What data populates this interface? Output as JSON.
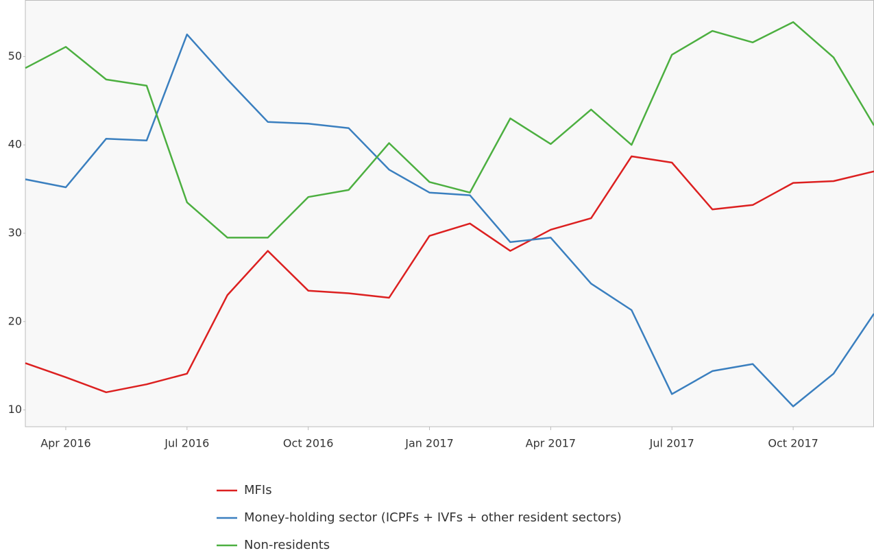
{
  "chart_data": {
    "type": "line",
    "x": [
      "2016-03",
      "2016-04",
      "2016-05",
      "2016-06",
      "2016-07",
      "2016-08",
      "2016-09",
      "2016-10",
      "2016-11",
      "2016-12",
      "2017-01",
      "2017-02",
      "2017-03",
      "2017-04",
      "2017-05",
      "2017-06",
      "2017-07",
      "2017-08",
      "2017-09",
      "2017-10",
      "2017-11",
      "2017-12"
    ],
    "xlim": [
      "2016-03",
      "2017-12"
    ],
    "xticks": [
      {
        "value": "2016-04",
        "label": "Apr 2016"
      },
      {
        "value": "2016-07",
        "label": "Jul 2016"
      },
      {
        "value": "2016-10",
        "label": "Oct 2016"
      },
      {
        "value": "2017-01",
        "label": "Jan 2017"
      },
      {
        "value": "2017-04",
        "label": "Apr 2017"
      },
      {
        "value": "2017-07",
        "label": "Jul 2017"
      },
      {
        "value": "2017-10",
        "label": "Oct 2017"
      }
    ],
    "ylim": [
      8.1,
      56.4
    ],
    "yticks": [
      10,
      20,
      30,
      40,
      50
    ],
    "grid": false,
    "legend": "bottom",
    "series": [
      {
        "name": "MFIs",
        "color": "#dc2020",
        "values": [
          15.3,
          13.7,
          12.0,
          12.9,
          14.1,
          23.0,
          28.0,
          23.5,
          23.2,
          22.7,
          29.7,
          31.1,
          28.0,
          30.4,
          31.7,
          38.7,
          38.0,
          32.7,
          33.2,
          35.7,
          35.9,
          37.0
        ]
      },
      {
        "name": "Money-holding sector (ICPFs + IVFs + other resident sectors)",
        "color": "#3a7fbf",
        "values": [
          36.1,
          35.2,
          40.7,
          40.5,
          52.5,
          47.4,
          42.6,
          42.4,
          41.9,
          37.2,
          34.6,
          34.3,
          29.0,
          29.5,
          24.3,
          21.3,
          11.8,
          14.4,
          15.2,
          10.4,
          14.1,
          20.9
        ]
      },
      {
        "name": "Non-residents",
        "color": "#4caf40",
        "values": [
          48.7,
          51.1,
          47.4,
          46.7,
          33.5,
          29.5,
          29.5,
          34.1,
          34.9,
          40.2,
          35.8,
          34.6,
          43.0,
          40.1,
          44.0,
          40.0,
          50.2,
          52.9,
          51.6,
          53.9,
          49.9,
          42.2
        ]
      }
    ]
  }
}
